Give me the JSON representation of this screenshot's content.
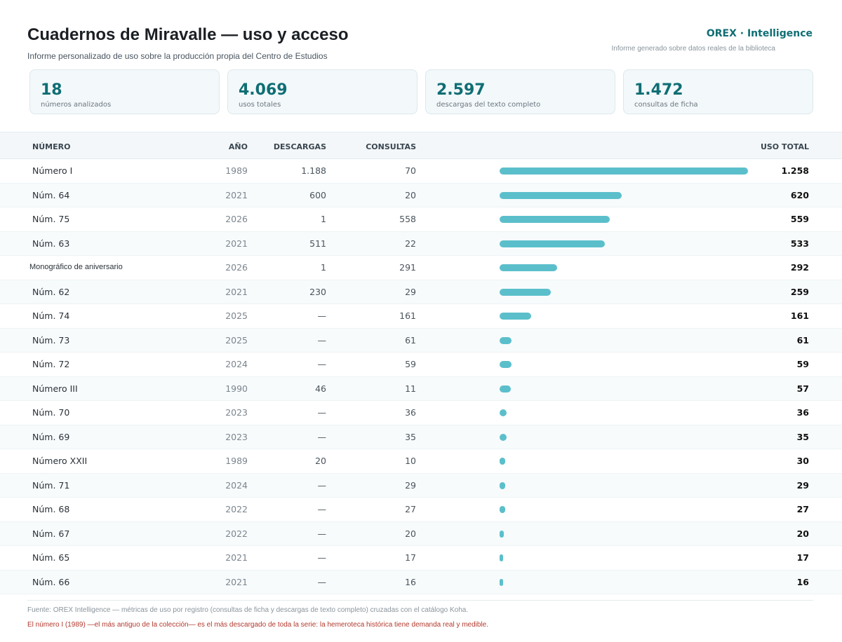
{
  "header": {
    "title": "Cuadernos de Miravalle — uso y acceso",
    "subtitle": "Informe personalizado de uso sobre la producción propia del Centro de Estudios",
    "brand": "OREX · Intelligence",
    "brand_sub": "Informe generado sobre datos reales de la biblioteca"
  },
  "kpis": [
    {
      "value": "18",
      "label": "números analizados"
    },
    {
      "value": "4.069",
      "label": "usos totales"
    },
    {
      "value": "2.597",
      "label": "descargas del texto completo"
    },
    {
      "value": "1.472",
      "label": "consultas de ficha"
    }
  ],
  "table": {
    "columns": {
      "numero": "NÚMERO",
      "anio": "AÑO",
      "descargas": "DESCARGAS",
      "consultas": "CONSULTAS",
      "uso_total": "USO TOTAL"
    },
    "max_total": 1258,
    "rows": [
      {
        "name": "Número I",
        "year": "1989",
        "downloads": "1.188",
        "consults": "70",
        "total": "1.258",
        "total_value": 1258
      },
      {
        "name": "Núm. 64",
        "year": "2021",
        "downloads": "600",
        "consults": "20",
        "total": "620",
        "total_value": 620
      },
      {
        "name": "Núm. 75",
        "year": "2026",
        "downloads": "1",
        "consults": "558",
        "total": "559",
        "total_value": 559
      },
      {
        "name": "Núm. 63",
        "year": "2021",
        "downloads": "511",
        "consults": "22",
        "total": "533",
        "total_value": 533
      },
      {
        "name": "Monográfico de aniversario",
        "year": "2026",
        "downloads": "1",
        "consults": "291",
        "total": "292",
        "total_value": 292
      },
      {
        "name": "Núm. 62",
        "year": "2021",
        "downloads": "230",
        "consults": "29",
        "total": "259",
        "total_value": 259
      },
      {
        "name": "Núm. 74",
        "year": "2025",
        "downloads": "—",
        "consults": "161",
        "total": "161",
        "total_value": 161
      },
      {
        "name": "Núm. 73",
        "year": "2025",
        "downloads": "—",
        "consults": "61",
        "total": "61",
        "total_value": 61
      },
      {
        "name": "Núm. 72",
        "year": "2024",
        "downloads": "—",
        "consults": "59",
        "total": "59",
        "total_value": 59
      },
      {
        "name": "Número III",
        "year": "1990",
        "downloads": "46",
        "consults": "11",
        "total": "57",
        "total_value": 57
      },
      {
        "name": "Núm. 70",
        "year": "2023",
        "downloads": "—",
        "consults": "36",
        "total": "36",
        "total_value": 36
      },
      {
        "name": "Núm. 69",
        "year": "2023",
        "downloads": "—",
        "consults": "35",
        "total": "35",
        "total_value": 35
      },
      {
        "name": "Número XXII",
        "year": "1989",
        "downloads": "20",
        "consults": "10",
        "total": "30",
        "total_value": 30
      },
      {
        "name": "Núm. 71",
        "year": "2024",
        "downloads": "—",
        "consults": "29",
        "total": "29",
        "total_value": 29
      },
      {
        "name": "Núm. 68",
        "year": "2022",
        "downloads": "—",
        "consults": "27",
        "total": "27",
        "total_value": 27
      },
      {
        "name": "Núm. 67",
        "year": "2022",
        "downloads": "—",
        "consults": "20",
        "total": "20",
        "total_value": 20
      },
      {
        "name": "Núm. 65",
        "year": "2021",
        "downloads": "—",
        "consults": "17",
        "total": "17",
        "total_value": 17
      },
      {
        "name": "Núm. 66",
        "year": "2021",
        "downloads": "—",
        "consults": "16",
        "total": "16",
        "total_value": 16
      }
    ]
  },
  "footer": {
    "source": "Fuente: OREX Intelligence — métricas de uso por registro (consultas de ficha y descargas de texto completo) cruzadas con el catálogo Koha.",
    "highlight": "El número I (1989) —el más antiguo de la colección— es el más descargado de toda la serie: la hemeroteca histórica tiene demanda real y medible."
  },
  "colors": {
    "accent": "#0f6e74",
    "bar": "#5bbfcb",
    "highlight": "#b23a2e"
  }
}
